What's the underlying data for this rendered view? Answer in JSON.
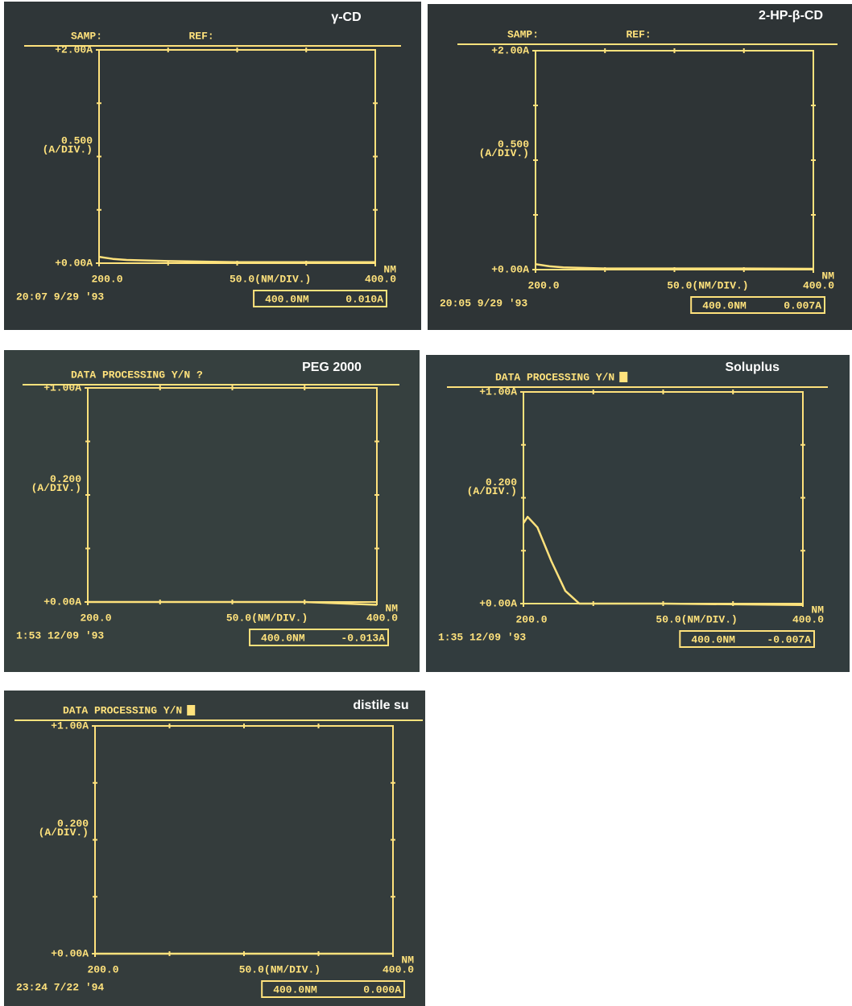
{
  "chart_data": [
    {
      "type": "line",
      "title": "γ-CD",
      "header": [
        "SAMP:",
        "REF:"
      ],
      "cursor": false,
      "ylim": [
        0,
        2
      ],
      "yticks": [
        {
          "value": 0,
          "label": "+0.00A"
        },
        {
          "value": 2,
          "label": "+2.00A"
        }
      ],
      "y_scale": [
        "0.500",
        "(A/DIV.)"
      ],
      "xlim": [
        200,
        400
      ],
      "xticks": [
        {
          "value": 200,
          "label": "200.0"
        },
        {
          "value": 400,
          "label": "400.0"
        }
      ],
      "x_scale": "50.0(NM/DIV.)",
      "x_unit": "NM",
      "x": [
        200,
        210,
        220,
        250,
        300,
        350,
        400
      ],
      "values": [
        0.06,
        0.04,
        0.03,
        0.02,
        0.01,
        0.01,
        0.01
      ],
      "color": "#ffe27c",
      "timestamp": "20:07 9/29 '93",
      "readout": [
        "400.0NM",
        "0.010A"
      ]
    },
    {
      "type": "line",
      "title": "2-HP-β-CD",
      "header": [
        "SAMP:",
        "REF:"
      ],
      "cursor": false,
      "ylim": [
        0,
        2
      ],
      "yticks": [
        {
          "value": 0,
          "label": "+0.00A"
        },
        {
          "value": 2,
          "label": "+2.00A"
        }
      ],
      "y_scale": [
        "0.500",
        "(A/DIV.)"
      ],
      "xlim": [
        200,
        400
      ],
      "xticks": [
        {
          "value": 200,
          "label": "200.0"
        },
        {
          "value": 400,
          "label": "400.0"
        }
      ],
      "x_scale": "50.0(NM/DIV.)",
      "x_unit": "NM",
      "x": [
        200,
        210,
        220,
        250,
        300,
        350,
        400
      ],
      "values": [
        0.05,
        0.03,
        0.02,
        0.01,
        0.01,
        0.01,
        0.007
      ],
      "color": "#ffe27c",
      "timestamp": "20:05 9/29 '93",
      "readout": [
        "400.0NM",
        "0.007A"
      ]
    },
    {
      "type": "line",
      "title": "PEG 2000",
      "header": [
        "DATA PROCESSING Y/N ?"
      ],
      "cursor": false,
      "ylim": [
        0,
        1
      ],
      "yticks": [
        {
          "value": 0,
          "label": "+0.00A"
        },
        {
          "value": 1,
          "label": "+1.00A"
        }
      ],
      "y_scale": [
        "0.200",
        "(A/DIV.)"
      ],
      "xlim": [
        200,
        400
      ],
      "xticks": [
        {
          "value": 200,
          "label": "200.0"
        },
        {
          "value": 400,
          "label": "400.0"
        }
      ],
      "x_scale": "50.0(NM/DIV.)",
      "x_unit": "NM",
      "x": [
        200,
        250,
        300,
        350,
        400
      ],
      "values": [
        0,
        0,
        0,
        0,
        -0.013
      ],
      "color": "#ffe27c",
      "timestamp": "1:53 12/09 '93",
      "readout": [
        "400.0NM",
        "-0.013A"
      ]
    },
    {
      "type": "line",
      "title": "Soluplus",
      "header": [
        "DATA PROCESSING Y/N"
      ],
      "cursor": true,
      "ylim": [
        0,
        1
      ],
      "yticks": [
        {
          "value": 0,
          "label": "+0.00A"
        },
        {
          "value": 1,
          "label": "+1.00A"
        }
      ],
      "y_scale": [
        "0.200",
        "(A/DIV.)"
      ],
      "xlim": [
        200,
        400
      ],
      "xticks": [
        {
          "value": 200,
          "label": "200.0"
        },
        {
          "value": 400,
          "label": "400.0"
        }
      ],
      "x_scale": "50.0(NM/DIV.)",
      "x_unit": "NM",
      "x": [
        200,
        203,
        210,
        220,
        230,
        240,
        300,
        400
      ],
      "values": [
        0.38,
        0.41,
        0.36,
        0.2,
        0.06,
        0,
        0,
        -0.007
      ],
      "color": "#ffe27c",
      "timestamp": "1:35 12/09 '93",
      "readout": [
        "400.0NM",
        "-0.007A"
      ]
    },
    {
      "type": "line",
      "title": "distile su",
      "header": [
        "DATA PROCESSING Y/N"
      ],
      "cursor": true,
      "ylim": [
        0,
        1
      ],
      "yticks": [
        {
          "value": 0,
          "label": "+0.00A"
        },
        {
          "value": 1,
          "label": "+1.00A"
        }
      ],
      "y_scale": [
        "0.200",
        "(A/DIV.)"
      ],
      "xlim": [
        200,
        400
      ],
      "xticks": [
        {
          "value": 200,
          "label": "200.0"
        },
        {
          "value": 400,
          "label": "400.0"
        }
      ],
      "x_scale": "50.0(NM/DIV.)",
      "x_unit": "NM",
      "x": [
        200,
        250,
        300,
        350,
        400
      ],
      "values": [
        0,
        0,
        0,
        0,
        0
      ],
      "color": "#ffe27c",
      "timestamp": "23:24 7/22 '94",
      "readout": [
        "400.0NM",
        "0.000A"
      ]
    }
  ]
}
